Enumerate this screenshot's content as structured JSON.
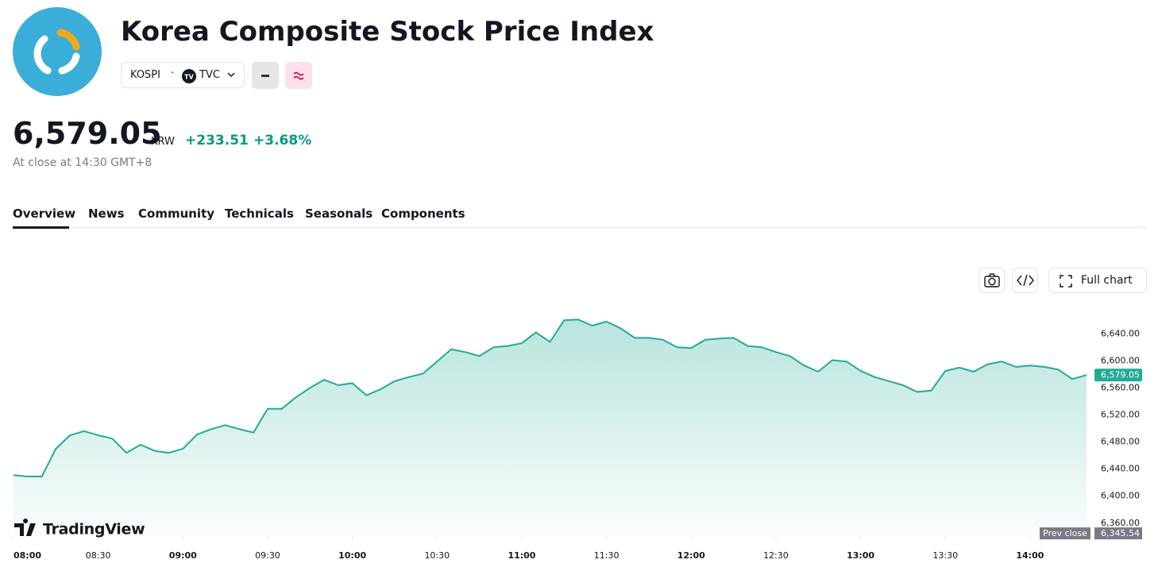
{
  "header": {
    "title": "Korea Composite Stock Price Index",
    "symbol": "KOSPI",
    "exchange": "TVC",
    "price": "6,579.05",
    "currency": "KRW",
    "change": "+233.51",
    "change_percent": "+3.68%",
    "close_note": "At close at 14:30 GMT+8"
  },
  "tabs": [
    "Overview",
    "News",
    "Community",
    "Technicals",
    "Seasonals",
    "Components"
  ],
  "toolbar": {
    "full_chart": "Full chart"
  },
  "chart_data": {
    "type": "area",
    "watermark": "TradingView",
    "x": [
      "08:00",
      "08:05",
      "08:10",
      "08:15",
      "08:20",
      "08:25",
      "08:30",
      "08:35",
      "08:40",
      "08:45",
      "08:50",
      "08:55",
      "09:00",
      "09:05",
      "09:10",
      "09:15",
      "09:20",
      "09:25",
      "09:30",
      "09:35",
      "09:40",
      "09:45",
      "09:50",
      "09:55",
      "10:00",
      "10:05",
      "10:10",
      "10:15",
      "10:20",
      "10:25",
      "10:30",
      "10:35",
      "10:40",
      "10:45",
      "10:50",
      "10:55",
      "11:00",
      "11:05",
      "11:10",
      "11:15",
      "11:20",
      "11:25",
      "11:30",
      "11:35",
      "11:40",
      "11:45",
      "11:50",
      "11:55",
      "12:00",
      "12:05",
      "12:10",
      "12:15",
      "12:20",
      "12:25",
      "12:30",
      "12:35",
      "12:40",
      "12:45",
      "12:50",
      "12:55",
      "13:00",
      "13:05",
      "13:10",
      "13:15",
      "13:20",
      "13:25",
      "13:30",
      "13:35",
      "13:40",
      "13:45",
      "13:50",
      "13:55",
      "14:00",
      "14:05",
      "14:10",
      "14:15",
      "14:20"
    ],
    "series": [
      {
        "name": "KOSPI",
        "color": "#22ab94",
        "values": [
          6431,
          6429,
          6429,
          6470,
          6490,
          6496,
          6490,
          6485,
          6464,
          6476,
          6467,
          6464,
          6470,
          6491,
          6499,
          6505,
          6499,
          6494,
          6529,
          6529,
          6546,
          6560,
          6572,
          6564,
          6567,
          6549,
          6558,
          6570,
          6576,
          6581,
          6599,
          6617,
          6613,
          6607,
          6620,
          6622,
          6626,
          6642,
          6628,
          6660,
          6661,
          6652,
          6658,
          6648,
          6634,
          6634,
          6631,
          6620,
          6619,
          6631,
          6633,
          6634,
          6622,
          6620,
          6613,
          6607,
          6593,
          6584,
          6601,
          6599,
          6585,
          6576,
          6570,
          6564,
          6554,
          6556,
          6585,
          6590,
          6584,
          6595,
          6599,
          6591,
          6593,
          6591,
          6587,
          6573,
          6579.05
        ]
      }
    ],
    "xlim": [
      "08:00",
      "14:20"
    ],
    "xticks": [
      "08:00",
      "08:30",
      "09:00",
      "09:30",
      "10:00",
      "10:30",
      "11:00",
      "11:30",
      "12:00",
      "12:30",
      "13:00",
      "13:30",
      "14:00"
    ],
    "ylim": [
      6341,
      6699
    ],
    "yticks": [
      {
        "value": 6360,
        "label": "6,360.00"
      },
      {
        "value": 6400,
        "label": "6,400.00"
      },
      {
        "value": 6440,
        "label": "6,440.00"
      },
      {
        "value": 6480,
        "label": "6,480.00"
      },
      {
        "value": 6520,
        "label": "6,520.00"
      },
      {
        "value": 6560,
        "label": "6,560.00"
      },
      {
        "value": 6600,
        "label": "6,600.00"
      },
      {
        "value": 6640,
        "label": "6,640.00"
      }
    ],
    "prev_close": {
      "label": "Prev close",
      "value": 6345.54,
      "value_label": "6,345.54"
    }
  }
}
